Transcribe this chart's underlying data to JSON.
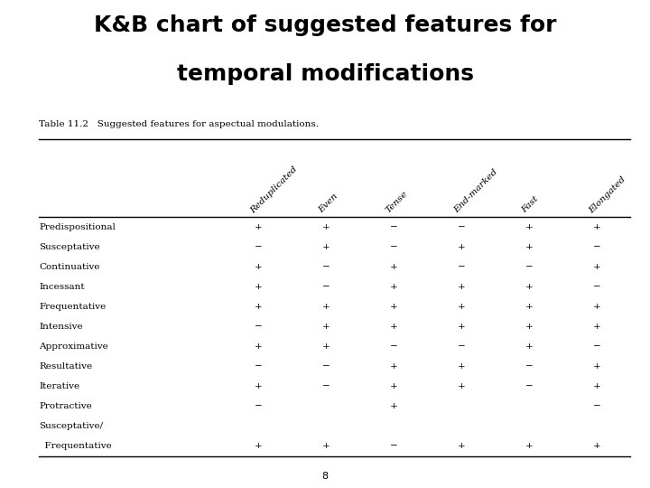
{
  "title_line1": "K&B chart of suggested features for",
  "title_line2": "temporal modifications",
  "table_caption": "Table 11.2   Suggested features for aspectual modulations.",
  "col_headers": [
    "Reduplicated",
    "Even",
    "Tense",
    "End-marked",
    "Fast",
    "Elongated"
  ],
  "row_labels": [
    "Predispositional",
    "Susceptative",
    "Continuative",
    "Incessant",
    "Frequentative",
    "Intensive",
    "Approximative",
    "Resultative",
    "Iterative",
    "Protractive",
    "Susceptative/",
    "  Frequentative"
  ],
  "data": [
    [
      "+",
      "+",
      "−",
      "−",
      "+",
      "+"
    ],
    [
      "−",
      "+",
      "−",
      "+",
      "+",
      "−"
    ],
    [
      "+",
      "−",
      "+",
      "−",
      "−",
      "+"
    ],
    [
      "+",
      "−",
      "+",
      "+",
      "+",
      "−"
    ],
    [
      "+",
      "+",
      "+",
      "+",
      "+",
      "+"
    ],
    [
      "−",
      "+",
      "+",
      "+",
      "+",
      "+"
    ],
    [
      "+",
      "+",
      "−",
      "−",
      "+",
      "−"
    ],
    [
      "−",
      "−",
      "+",
      "+",
      "−",
      "+"
    ],
    [
      "+",
      "−",
      "+",
      "+",
      "−",
      "+"
    ],
    [
      "−",
      "",
      "+",
      "",
      "",
      "−"
    ],
    [
      "",
      "",
      "",
      "",
      "",
      ""
    ],
    [
      "+",
      "+",
      "−",
      "+",
      "+",
      "+"
    ]
  ],
  "page_number": "8",
  "bg_color": "#ffffff",
  "text_color": "#000000",
  "title_fontsize": 18,
  "caption_fontsize": 7.5,
  "table_fontsize": 7.5
}
